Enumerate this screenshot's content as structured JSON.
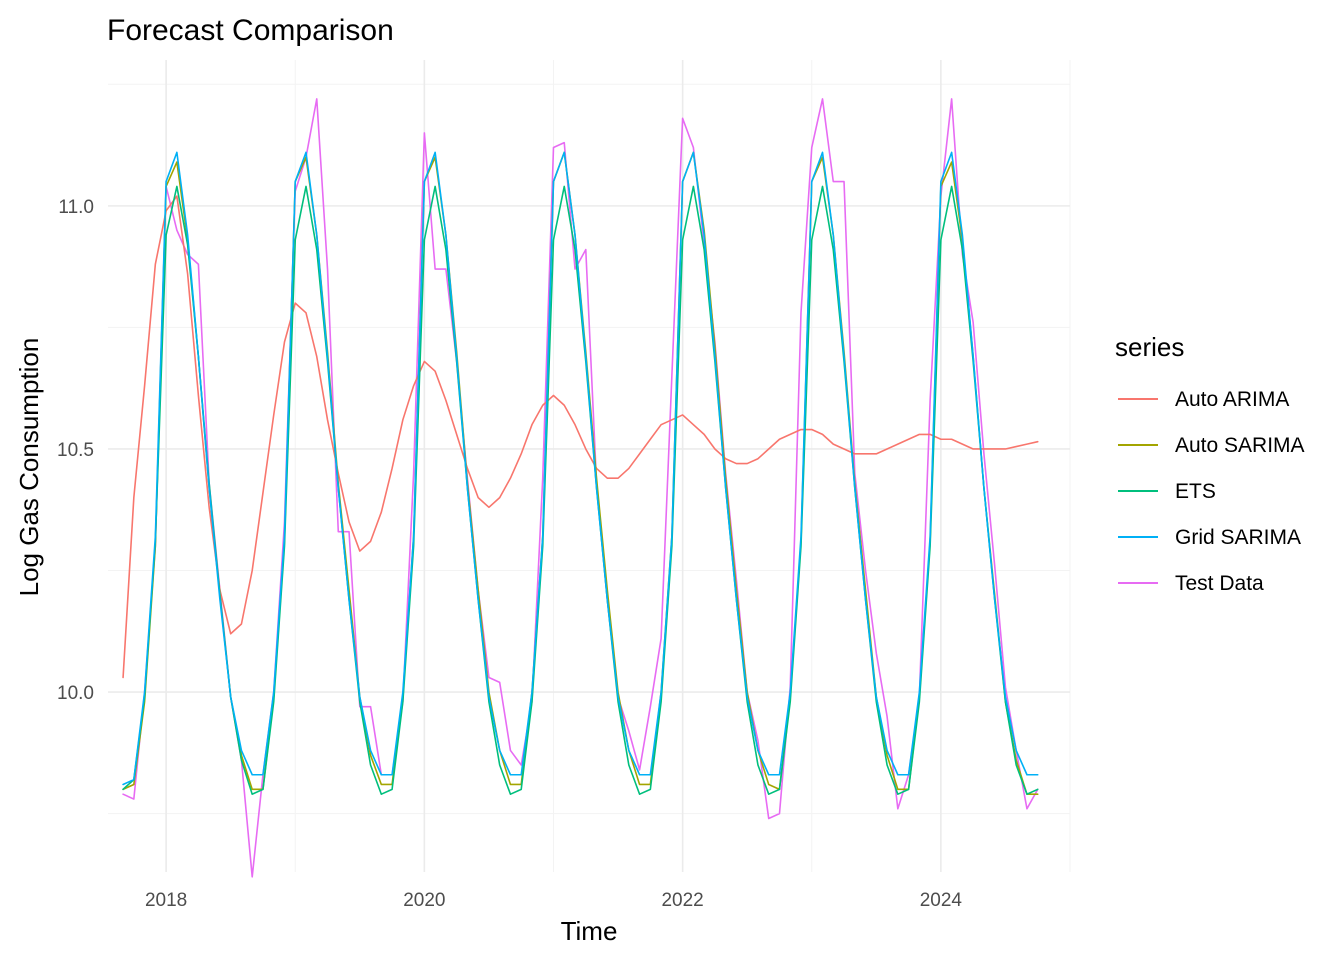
{
  "chart_data": {
    "type": "line",
    "title": "Forecast Comparison",
    "xlabel": "Time",
    "ylabel": "Log Gas Consumption",
    "xlim": [
      2017.55,
      2025.0
    ],
    "ylim": [
      9.63,
      11.3
    ],
    "x_ticks": [
      2018,
      2020,
      2022,
      2024
    ],
    "x_tick_labels": [
      "2018",
      "2020",
      "2022",
      "2024"
    ],
    "y_ticks": [
      10.0,
      10.5,
      11.0
    ],
    "y_tick_labels": [
      "10.0",
      "10.5",
      "11.0"
    ],
    "grid": true,
    "legend": {
      "title": "series",
      "position": "right"
    },
    "x_start": 2017.6667,
    "x_step_months": 1,
    "series": [
      {
        "name": "Auto ARIMA",
        "color": "#F8766D",
        "values": [
          10.03,
          10.4,
          10.63,
          10.88,
          10.99,
          11.02,
          10.86,
          10.61,
          10.38,
          10.21,
          10.12,
          10.14,
          10.25,
          10.41,
          10.57,
          10.72,
          10.8,
          10.78,
          10.69,
          10.56,
          10.45,
          10.35,
          10.29,
          10.31,
          10.37,
          10.46,
          10.56,
          10.63,
          10.68,
          10.66,
          10.6,
          10.53,
          10.46,
          10.4,
          10.38,
          10.4,
          10.44,
          10.49,
          10.55,
          10.59,
          10.61,
          10.59,
          10.55,
          10.5,
          10.46,
          10.44,
          10.44,
          10.46,
          10.49,
          10.52,
          10.55,
          10.56,
          10.57,
          10.55,
          10.53,
          10.5,
          10.48,
          10.47,
          10.47,
          10.48,
          10.5,
          10.52,
          10.53,
          10.54,
          10.54,
          10.53,
          10.51,
          10.5,
          10.49,
          10.49,
          10.49,
          10.5,
          10.51,
          10.52,
          10.53,
          10.53,
          10.52,
          10.52,
          10.51,
          10.5,
          10.5,
          10.5,
          10.5,
          10.505,
          10.51,
          10.515
        ]
      },
      {
        "name": "Auto SARIMA",
        "color": "#A3A500",
        "values": [
          9.8,
          9.81,
          9.98,
          10.3,
          11.04,
          11.09,
          10.93,
          10.69,
          10.42,
          10.2,
          9.99,
          9.87,
          9.8,
          9.8,
          9.99,
          10.31,
          11.05,
          11.1,
          10.94,
          10.7,
          10.43,
          10.21,
          9.99,
          9.87,
          9.81,
          9.81,
          9.99,
          10.32,
          11.05,
          11.1,
          10.94,
          10.7,
          10.43,
          10.21,
          10.0,
          9.88,
          9.81,
          9.81,
          10.0,
          10.32,
          11.05,
          11.11,
          10.94,
          10.7,
          10.44,
          10.21,
          10.0,
          9.88,
          9.81,
          9.81,
          10.0,
          10.32,
          11.05,
          11.11,
          10.95,
          10.71,
          10.44,
          10.21,
          10.0,
          9.88,
          9.81,
          9.8,
          9.99,
          10.31,
          11.05,
          11.1,
          10.94,
          10.7,
          10.43,
          10.21,
          9.99,
          9.87,
          9.8,
          9.8,
          9.99,
          10.31,
          11.04,
          11.09,
          10.93,
          10.69,
          10.42,
          10.2,
          9.98,
          9.86,
          9.79,
          9.79
        ]
      },
      {
        "name": "ETS",
        "color": "#00BF7D",
        "values": [
          9.8,
          9.82,
          9.99,
          10.31,
          10.94,
          11.04,
          10.92,
          10.69,
          10.43,
          10.2,
          9.99,
          9.86,
          9.79,
          9.8,
          9.98,
          10.3,
          10.93,
          11.04,
          10.91,
          10.68,
          10.42,
          10.19,
          9.98,
          9.85,
          9.79,
          9.8,
          9.98,
          10.3,
          10.93,
          11.04,
          10.91,
          10.68,
          10.42,
          10.19,
          9.98,
          9.85,
          9.79,
          9.8,
          9.98,
          10.3,
          10.93,
          11.04,
          10.91,
          10.68,
          10.42,
          10.19,
          9.98,
          9.85,
          9.79,
          9.8,
          9.98,
          10.3,
          10.93,
          11.04,
          10.91,
          10.68,
          10.42,
          10.19,
          9.98,
          9.85,
          9.79,
          9.8,
          9.98,
          10.3,
          10.93,
          11.04,
          10.91,
          10.68,
          10.42,
          10.19,
          9.98,
          9.85,
          9.79,
          9.8,
          9.98,
          10.3,
          10.93,
          11.04,
          10.91,
          10.68,
          10.42,
          10.19,
          9.98,
          9.85,
          9.79,
          9.8
        ]
      },
      {
        "name": "Grid SARIMA",
        "color": "#00B0F6",
        "values": [
          9.81,
          9.82,
          10.0,
          10.32,
          11.05,
          11.11,
          10.94,
          10.69,
          10.42,
          10.19,
          9.99,
          9.88,
          9.83,
          9.83,
          10.0,
          10.32,
          11.05,
          11.11,
          10.94,
          10.69,
          10.42,
          10.19,
          9.99,
          9.88,
          9.83,
          9.83,
          10.0,
          10.32,
          11.05,
          11.11,
          10.94,
          10.69,
          10.42,
          10.19,
          9.99,
          9.88,
          9.83,
          9.83,
          10.0,
          10.32,
          11.05,
          11.11,
          10.94,
          10.69,
          10.42,
          10.19,
          9.99,
          9.88,
          9.83,
          9.83,
          10.0,
          10.32,
          11.05,
          11.11,
          10.94,
          10.69,
          10.42,
          10.19,
          9.99,
          9.88,
          9.83,
          9.83,
          10.0,
          10.32,
          11.05,
          11.11,
          10.94,
          10.69,
          10.42,
          10.19,
          9.99,
          9.88,
          9.83,
          9.83,
          10.0,
          10.32,
          11.05,
          11.11,
          10.94,
          10.69,
          10.42,
          10.19,
          9.99,
          9.88,
          9.83,
          9.83
        ]
      },
      {
        "name": "Test Data",
        "color": "#E76BF3",
        "values": [
          9.79,
          9.78,
          10.0,
          10.3,
          11.04,
          10.95,
          10.9,
          10.88,
          10.43,
          10.21,
          9.99,
          9.86,
          9.62,
          9.83,
          10.0,
          10.35,
          11.03,
          11.1,
          11.22,
          10.87,
          10.33,
          10.33,
          9.97,
          9.97,
          9.83,
          9.83,
          9.98,
          10.45,
          11.15,
          10.87,
          10.87,
          10.68,
          10.44,
          10.21,
          10.03,
          10.02,
          9.88,
          9.85,
          9.98,
          10.44,
          11.12,
          11.13,
          10.87,
          10.91,
          10.43,
          10.19,
          9.99,
          9.92,
          9.84,
          9.97,
          10.11,
          10.65,
          11.18,
          11.12,
          10.92,
          10.72,
          10.45,
          10.23,
          10.0,
          9.9,
          9.74,
          9.75,
          10.01,
          10.78,
          11.12,
          11.22,
          11.05,
          11.05,
          10.45,
          10.25,
          10.08,
          9.95,
          9.76,
          9.83,
          9.99,
          10.6,
          11.02,
          11.22,
          10.9,
          10.76,
          10.49,
          10.26,
          10.01,
          9.88,
          9.76,
          9.8
        ]
      }
    ]
  }
}
